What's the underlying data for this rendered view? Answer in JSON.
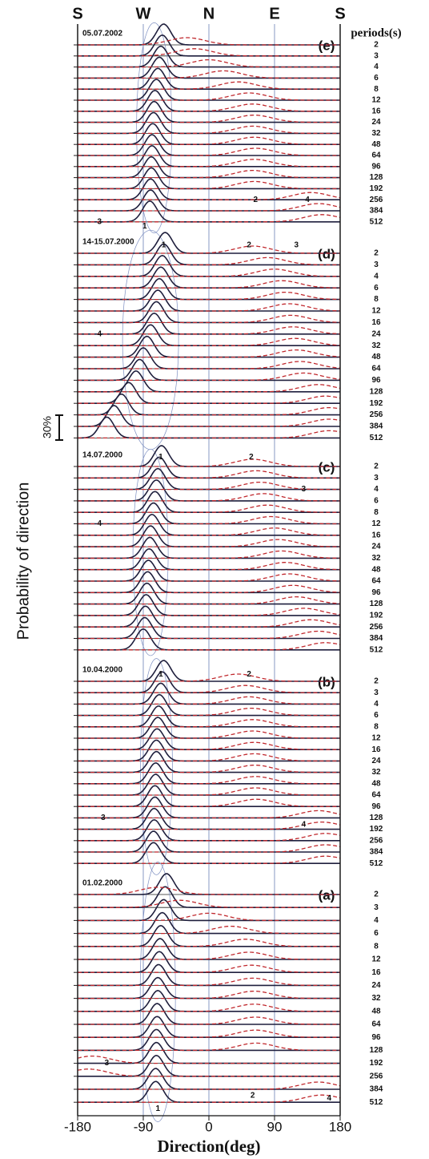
{
  "chart_data": {
    "type": "ridgeline",
    "compass_ticks": [
      {
        "value": -180,
        "label": "S"
      },
      {
        "value": -90,
        "label": "W"
      },
      {
        "value": 0,
        "label": "N"
      },
      {
        "value": 90,
        "label": "E"
      },
      {
        "value": 180,
        "label": "S"
      }
    ],
    "periods_title": "periods(s)",
    "ylabel": "Probability of direction",
    "scale_label": "30%",
    "xlabel": "Direction(deg)",
    "xlim": [
      -180,
      180
    ],
    "xticks": [
      -180,
      -90,
      0,
      90,
      180
    ],
    "panels": [
      {
        "label": "05.07.2002",
        "panel": "(e)",
        "periods": [
          "2",
          "3",
          "4",
          "6",
          "8",
          "12",
          "16",
          "24",
          "32",
          "48",
          "64",
          "96",
          "128",
          "192",
          "256",
          "384",
          "512"
        ],
        "annotations": [
          "1",
          "2",
          "3",
          "4"
        ],
        "series": [
          {
            "color": "#1f1f3d",
            "values": [
              -62,
              -64,
              -66,
              -68,
              -70,
              -72,
              -74,
              -75,
              -76,
              -77,
              -78,
              -78,
              -79,
              -79,
              -80,
              -80,
              -81
            ]
          },
          {
            "color": "#c0282d",
            "values": [
              -30,
              -20,
              0,
              20,
              40,
              55,
              60,
              62,
              60,
              62,
              64,
              62,
              60,
              62,
              140,
              150,
              155
            ]
          }
        ]
      },
      {
        "label": "14-15.07.2000",
        "panel": "(d)",
        "periods": [
          "2",
          "3",
          "4",
          "6",
          "8",
          "12",
          "16",
          "24",
          "32",
          "48",
          "64",
          "96",
          "128",
          "192",
          "256",
          "384",
          "512"
        ],
        "annotations": [
          "1",
          "2",
          "3",
          "4"
        ],
        "series": [
          {
            "color": "#1f1f3d",
            "values": [
              -60,
              -62,
              -64,
              -66,
              -68,
              -70,
              -72,
              -75,
              -80,
              -85,
              -90,
              -95,
              -100,
              -110,
              -120,
              -130,
              -140
            ]
          },
          {
            "color": "#c0282d",
            "values": [
              60,
              80,
              90,
              100,
              105,
              110,
              112,
              115,
              118,
              120,
              125,
              130,
              150,
              160,
              165,
              165,
              165
            ]
          }
        ]
      },
      {
        "label": "14.07.2000",
        "panel": "(c)",
        "periods": [
          "2",
          "3",
          "4",
          "6",
          "8",
          "12",
          "16",
          "24",
          "32",
          "48",
          "64",
          "96",
          "128",
          "192",
          "256",
          "384",
          "512"
        ],
        "annotations": [
          "1",
          "2",
          "3",
          "4"
        ],
        "series": [
          {
            "color": "#1f1f3d",
            "values": [
              -65,
              -68,
              -70,
              -72,
              -74,
              -76,
              -78,
              -80,
              -81,
              -82,
              -83,
              -84,
              -85,
              -86,
              -87,
              -88,
              -90
            ]
          },
          {
            "color": "#c0282d",
            "values": [
              60,
              65,
              70,
              75,
              80,
              85,
              90,
              95,
              100,
              105,
              110,
              115,
              120,
              130,
              140,
              150,
              160
            ]
          }
        ]
      },
      {
        "label": "10.04.2000",
        "panel": "(b)",
        "periods": [
          "2",
          "3",
          "4",
          "6",
          "8",
          "12",
          "16",
          "24",
          "32",
          "48",
          "64",
          "96",
          "128",
          "192",
          "256",
          "384",
          "512"
        ],
        "annotations": [
          "1",
          "2",
          "3",
          "4"
        ],
        "series": [
          {
            "color": "#1f1f3d",
            "values": [
              -62,
              -64,
              -66,
              -68,
              -69,
              -70,
              -71,
              -72,
              -72,
              -73,
              -73,
              -74,
              -74,
              -75,
              -75,
              -76,
              -76
            ]
          },
          {
            "color": "#c0282d",
            "values": [
              40,
              50,
              55,
              58,
              60,
              60,
              62,
              62,
              63,
              64,
              64,
              65,
              150,
              155,
              160,
              160,
              160
            ]
          }
        ]
      },
      {
        "label": "01.02.2000",
        "panel": "(a)",
        "periods": [
          "2",
          "3",
          "4",
          "6",
          "8",
          "12",
          "16",
          "24",
          "32",
          "48",
          "64",
          "96",
          "128",
          "192",
          "256",
          "384",
          "512"
        ],
        "annotations": [
          "1",
          "2",
          "3",
          "4"
        ],
        "series": [
          {
            "color": "#1f1f3d",
            "values": [
              -58,
              -60,
              -62,
              -64,
              -66,
              -67,
              -68,
              -69,
              -70,
              -70,
              -71,
              -71,
              -72,
              -72,
              -72,
              -73,
              -73
            ]
          },
          {
            "color": "#c0282d",
            "values": [
              -70,
              -40,
              0,
              30,
              50,
              55,
              58,
              60,
              62,
              62,
              64,
              64,
              65,
              -160,
              -165,
              150,
              155
            ]
          }
        ]
      }
    ]
  }
}
